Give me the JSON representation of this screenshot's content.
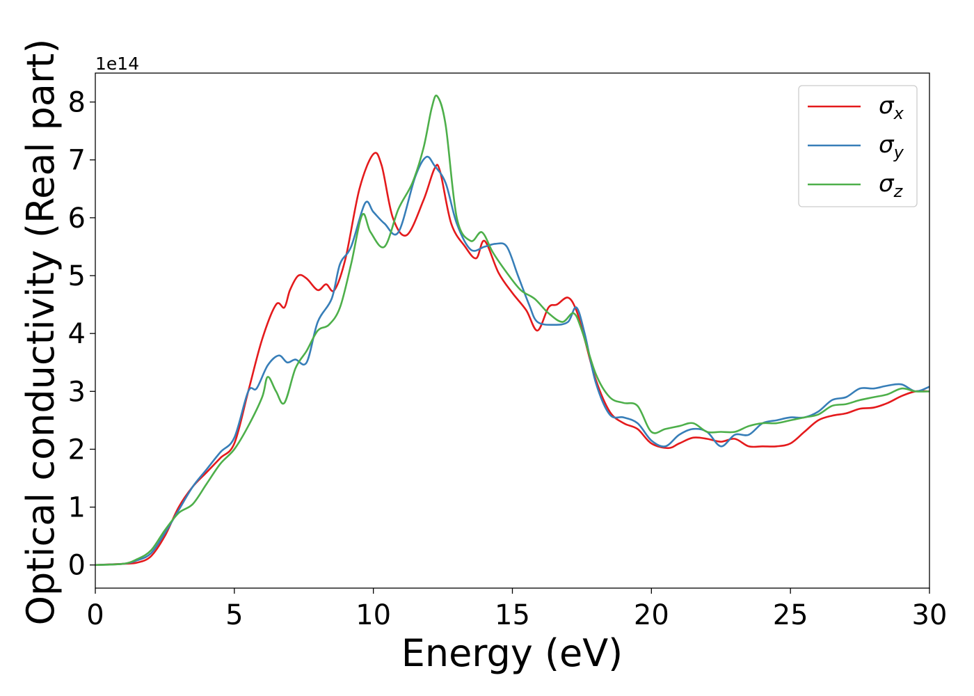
{
  "chart_data": {
    "type": "line",
    "title": "",
    "xlabel": "Energy (eV)",
    "ylabel": "Optical conductivity (Real part)",
    "y_offset_label": "1e14",
    "xlim": [
      0,
      30
    ],
    "ylim": [
      -0.4,
      8.5
    ],
    "x_ticks": [
      0,
      5,
      10,
      15,
      20,
      25,
      30
    ],
    "x_tick_labels": [
      "0",
      "5",
      "10",
      "15",
      "20",
      "25",
      "30"
    ],
    "y_ticks": [
      0,
      1,
      2,
      3,
      4,
      5,
      6,
      7,
      8
    ],
    "y_tick_labels": [
      "0",
      "1",
      "2",
      "3",
      "4",
      "5",
      "6",
      "7",
      "8"
    ],
    "grid": false,
    "legend_position": "top-right",
    "series": [
      {
        "name": "σx",
        "legend_base": "σ",
        "legend_sub": "x",
        "color": "#e41a1c",
        "points": [
          [
            0,
            0
          ],
          [
            1,
            0.02
          ],
          [
            1.5,
            0.04
          ],
          [
            2,
            0.15
          ],
          [
            2.5,
            0.5
          ],
          [
            3,
            1.0
          ],
          [
            3.5,
            1.35
          ],
          [
            4,
            1.6
          ],
          [
            4.5,
            1.85
          ],
          [
            5,
            2.1
          ],
          [
            5.5,
            3.0
          ],
          [
            6,
            3.9
          ],
          [
            6.5,
            4.5
          ],
          [
            6.8,
            4.45
          ],
          [
            7,
            4.75
          ],
          [
            7.3,
            5.0
          ],
          [
            7.6,
            4.95
          ],
          [
            8,
            4.75
          ],
          [
            8.3,
            4.85
          ],
          [
            8.6,
            4.75
          ],
          [
            9,
            5.3
          ],
          [
            9.5,
            6.5
          ],
          [
            10,
            7.1
          ],
          [
            10.3,
            6.9
          ],
          [
            10.7,
            6.0
          ],
          [
            11.2,
            5.7
          ],
          [
            11.8,
            6.3
          ],
          [
            12.2,
            6.85
          ],
          [
            12.4,
            6.8
          ],
          [
            12.8,
            5.9
          ],
          [
            13.3,
            5.5
          ],
          [
            13.7,
            5.3
          ],
          [
            14,
            5.6
          ],
          [
            14.5,
            5.05
          ],
          [
            15,
            4.7
          ],
          [
            15.5,
            4.4
          ],
          [
            15.9,
            4.05
          ],
          [
            16.3,
            4.45
          ],
          [
            16.6,
            4.5
          ],
          [
            17,
            4.62
          ],
          [
            17.3,
            4.4
          ],
          [
            17.6,
            3.9
          ],
          [
            18,
            3.2
          ],
          [
            18.5,
            2.65
          ],
          [
            19,
            2.45
          ],
          [
            19.5,
            2.35
          ],
          [
            20,
            2.1
          ],
          [
            20.6,
            2.02
          ],
          [
            21,
            2.1
          ],
          [
            21.5,
            2.2
          ],
          [
            22,
            2.18
          ],
          [
            22.5,
            2.13
          ],
          [
            23,
            2.18
          ],
          [
            23.5,
            2.05
          ],
          [
            24,
            2.05
          ],
          [
            24.5,
            2.05
          ],
          [
            25,
            2.1
          ],
          [
            25.5,
            2.3
          ],
          [
            26,
            2.5
          ],
          [
            26.5,
            2.58
          ],
          [
            27,
            2.62
          ],
          [
            27.5,
            2.7
          ],
          [
            28,
            2.72
          ],
          [
            28.5,
            2.8
          ],
          [
            29,
            2.92
          ],
          [
            29.5,
            3.0
          ],
          [
            30,
            3.0
          ]
        ]
      },
      {
        "name": "σy",
        "legend_base": "σ",
        "legend_sub": "y",
        "color": "#377eb8",
        "points": [
          [
            0,
            0
          ],
          [
            1,
            0.02
          ],
          [
            1.5,
            0.08
          ],
          [
            2,
            0.2
          ],
          [
            2.5,
            0.55
          ],
          [
            3,
            0.95
          ],
          [
            3.5,
            1.35
          ],
          [
            4,
            1.65
          ],
          [
            4.5,
            1.95
          ],
          [
            5,
            2.2
          ],
          [
            5.5,
            3.0
          ],
          [
            5.8,
            3.05
          ],
          [
            6.2,
            3.45
          ],
          [
            6.6,
            3.62
          ],
          [
            6.9,
            3.5
          ],
          [
            7.2,
            3.55
          ],
          [
            7.6,
            3.5
          ],
          [
            8,
            4.2
          ],
          [
            8.5,
            4.6
          ],
          [
            8.8,
            5.2
          ],
          [
            9.2,
            5.5
          ],
          [
            9.7,
            6.25
          ],
          [
            10,
            6.1
          ],
          [
            10.4,
            5.9
          ],
          [
            10.9,
            5.75
          ],
          [
            11.5,
            6.7
          ],
          [
            11.9,
            7.05
          ],
          [
            12.2,
            6.9
          ],
          [
            12.6,
            6.6
          ],
          [
            13,
            5.9
          ],
          [
            13.5,
            5.45
          ],
          [
            14,
            5.5
          ],
          [
            14.4,
            5.55
          ],
          [
            14.8,
            5.5
          ],
          [
            15.2,
            5.0
          ],
          [
            15.6,
            4.5
          ],
          [
            15.9,
            4.2
          ],
          [
            16.5,
            4.15
          ],
          [
            17,
            4.2
          ],
          [
            17.3,
            4.45
          ],
          [
            17.6,
            4.0
          ],
          [
            18,
            3.15
          ],
          [
            18.5,
            2.6
          ],
          [
            19,
            2.55
          ],
          [
            19.5,
            2.45
          ],
          [
            20,
            2.15
          ],
          [
            20.5,
            2.05
          ],
          [
            21,
            2.25
          ],
          [
            21.5,
            2.35
          ],
          [
            22,
            2.3
          ],
          [
            22.5,
            2.05
          ],
          [
            23,
            2.25
          ],
          [
            23.5,
            2.25
          ],
          [
            24,
            2.45
          ],
          [
            24.5,
            2.5
          ],
          [
            25,
            2.55
          ],
          [
            25.5,
            2.55
          ],
          [
            26,
            2.65
          ],
          [
            26.5,
            2.85
          ],
          [
            27,
            2.9
          ],
          [
            27.5,
            3.05
          ],
          [
            28,
            3.05
          ],
          [
            28.5,
            3.1
          ],
          [
            29,
            3.12
          ],
          [
            29.5,
            3.0
          ],
          [
            30,
            3.08
          ]
        ]
      },
      {
        "name": "σz",
        "legend_base": "σ",
        "legend_sub": "z",
        "color": "#4daf4a",
        "points": [
          [
            0,
            0
          ],
          [
            1,
            0.02
          ],
          [
            1.5,
            0.1
          ],
          [
            2,
            0.25
          ],
          [
            2.5,
            0.6
          ],
          [
            3,
            0.9
          ],
          [
            3.5,
            1.05
          ],
          [
            4,
            1.4
          ],
          [
            4.5,
            1.75
          ],
          [
            5,
            2.0
          ],
          [
            5.5,
            2.4
          ],
          [
            6,
            2.9
          ],
          [
            6.2,
            3.25
          ],
          [
            6.5,
            3.0
          ],
          [
            6.8,
            2.8
          ],
          [
            7.2,
            3.4
          ],
          [
            7.6,
            3.7
          ],
          [
            8,
            4.05
          ],
          [
            8.4,
            4.15
          ],
          [
            8.8,
            4.45
          ],
          [
            9.2,
            5.2
          ],
          [
            9.6,
            6.05
          ],
          [
            9.9,
            5.75
          ],
          [
            10.4,
            5.5
          ],
          [
            10.9,
            6.15
          ],
          [
            11.4,
            6.6
          ],
          [
            11.8,
            7.2
          ],
          [
            12.1,
            7.9
          ],
          [
            12.3,
            8.1
          ],
          [
            12.6,
            7.6
          ],
          [
            13,
            6.0
          ],
          [
            13.5,
            5.6
          ],
          [
            13.9,
            5.75
          ],
          [
            14.3,
            5.4
          ],
          [
            14.8,
            5.05
          ],
          [
            15.3,
            4.75
          ],
          [
            15.8,
            4.6
          ],
          [
            16.3,
            4.35
          ],
          [
            16.8,
            4.2
          ],
          [
            17.2,
            4.35
          ],
          [
            17.5,
            4.05
          ],
          [
            18,
            3.3
          ],
          [
            18.5,
            2.9
          ],
          [
            19,
            2.8
          ],
          [
            19.5,
            2.75
          ],
          [
            20,
            2.3
          ],
          [
            20.5,
            2.35
          ],
          [
            21,
            2.4
          ],
          [
            21.5,
            2.45
          ],
          [
            22,
            2.3
          ],
          [
            22.5,
            2.3
          ],
          [
            23,
            2.3
          ],
          [
            23.5,
            2.4
          ],
          [
            24,
            2.45
          ],
          [
            24.5,
            2.45
          ],
          [
            25,
            2.5
          ],
          [
            25.5,
            2.55
          ],
          [
            26,
            2.6
          ],
          [
            26.5,
            2.75
          ],
          [
            27,
            2.78
          ],
          [
            27.5,
            2.85
          ],
          [
            28,
            2.9
          ],
          [
            28.5,
            2.95
          ],
          [
            29,
            3.05
          ],
          [
            29.5,
            3.0
          ],
          [
            30,
            3.0
          ]
        ]
      }
    ]
  }
}
